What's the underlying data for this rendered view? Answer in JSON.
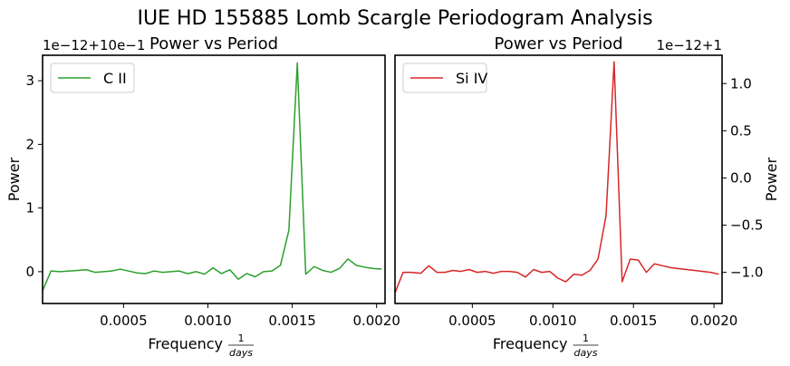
{
  "figure": {
    "suptitle": "IUE HD 155885 Lomb Scargle Periodogram Analysis"
  },
  "chart_data": [
    {
      "type": "line",
      "title": "Power vs Period",
      "xlabel_main": "Frequency",
      "xlabel_frac_num": "1",
      "xlabel_frac_den": "days",
      "ylabel": "Power",
      "offset_text": "1e−12+10e−1",
      "xlim": [
        2e-05,
        0.00205
      ],
      "ylim": [
        -0.5,
        3.4
      ],
      "xticks": [
        0.0005,
        0.001,
        0.0015,
        0.002
      ],
      "xtick_labels": [
        "0.0005",
        "0.0010",
        "0.0015",
        "0.0020"
      ],
      "yticks": [
        0,
        1,
        2,
        3
      ],
      "ytick_labels": [
        "0",
        "1",
        "2",
        "3"
      ],
      "y_axis_side": "left",
      "legend_position": "top-left",
      "series": [
        {
          "name": "C II",
          "color": "#2ca02c",
          "x": [
            2e-05,
            7e-05,
            0.00012,
            0.00018,
            0.00023,
            0.00028,
            0.00033,
            0.00038,
            0.00043,
            0.00048,
            0.00053,
            0.00058,
            0.00063,
            0.00068,
            0.00073,
            0.00078,
            0.00083,
            0.00088,
            0.00093,
            0.00098,
            0.00103,
            0.00108,
            0.00113,
            0.00118,
            0.00123,
            0.00128,
            0.00133,
            0.00138,
            0.00143,
            0.00148,
            0.00153,
            0.00158,
            0.00163,
            0.00168,
            0.00173,
            0.00178,
            0.00183,
            0.00188,
            0.00193,
            0.00198,
            0.00203
          ],
          "values": [
            -0.3,
            0.01,
            0.0,
            0.01,
            0.02,
            0.03,
            -0.01,
            0.0,
            0.01,
            0.04,
            0.01,
            -0.02,
            -0.03,
            0.01,
            -0.01,
            0.0,
            0.01,
            -0.03,
            0.0,
            -0.04,
            0.06,
            -0.03,
            0.03,
            -0.12,
            -0.03,
            -0.08,
            0.0,
            0.01,
            0.1,
            0.65,
            3.28,
            -0.04,
            0.08,
            0.02,
            -0.01,
            0.05,
            0.2,
            0.1,
            0.07,
            0.05,
            0.04
          ]
        }
      ]
    },
    {
      "type": "line",
      "title": "Power vs Period",
      "xlabel_main": "Frequency",
      "xlabel_frac_num": "1",
      "xlabel_frac_den": "days",
      "ylabel": "Power",
      "offset_text": "1e−12+1",
      "xlim": [
        2e-05,
        0.00205
      ],
      "ylim": [
        -1.33,
        1.3
      ],
      "xticks": [
        0.0005,
        0.001,
        0.0015,
        0.002
      ],
      "xtick_labels": [
        "0.0005",
        "0.0010",
        "0.0015",
        "0.0020"
      ],
      "yticks": [
        -1.0,
        -0.5,
        0.0,
        0.5,
        1.0
      ],
      "ytick_labels": [
        "−1.0",
        "−0.5",
        "0.0",
        "0.5",
        "1.0"
      ],
      "y_axis_side": "right",
      "legend_position": "top-left",
      "series": [
        {
          "name": "Si IV",
          "color": "#d62728",
          "x": [
            2e-05,
            7e-05,
            0.00012,
            0.00018,
            0.00023,
            0.00028,
            0.00033,
            0.00038,
            0.00043,
            0.00048,
            0.00053,
            0.00058,
            0.00063,
            0.00068,
            0.00073,
            0.00078,
            0.00083,
            0.00088,
            0.00093,
            0.00098,
            0.00103,
            0.00108,
            0.00113,
            0.00118,
            0.00123,
            0.00128,
            0.00133,
            0.00138,
            0.00143,
            0.00148,
            0.00153,
            0.00158,
            0.00163,
            0.00168,
            0.00173,
            0.00178,
            0.00183,
            0.00188,
            0.00193,
            0.00198,
            0.00203
          ],
          "values": [
            -1.22,
            -1.0,
            -1.0,
            -1.01,
            -0.93,
            -1.0,
            -1.0,
            -0.98,
            -0.99,
            -0.97,
            -1.0,
            -0.99,
            -1.01,
            -0.99,
            -0.99,
            -1.0,
            -1.05,
            -0.97,
            -1.0,
            -0.99,
            -1.06,
            -1.1,
            -1.02,
            -1.03,
            -0.98,
            -0.86,
            -0.4,
            1.23,
            -1.1,
            -0.86,
            -0.87,
            -1.0,
            -0.91,
            -0.93,
            -0.95,
            -0.96,
            -0.97,
            -0.98,
            -0.99,
            -1.0,
            -1.02
          ]
        }
      ]
    }
  ]
}
